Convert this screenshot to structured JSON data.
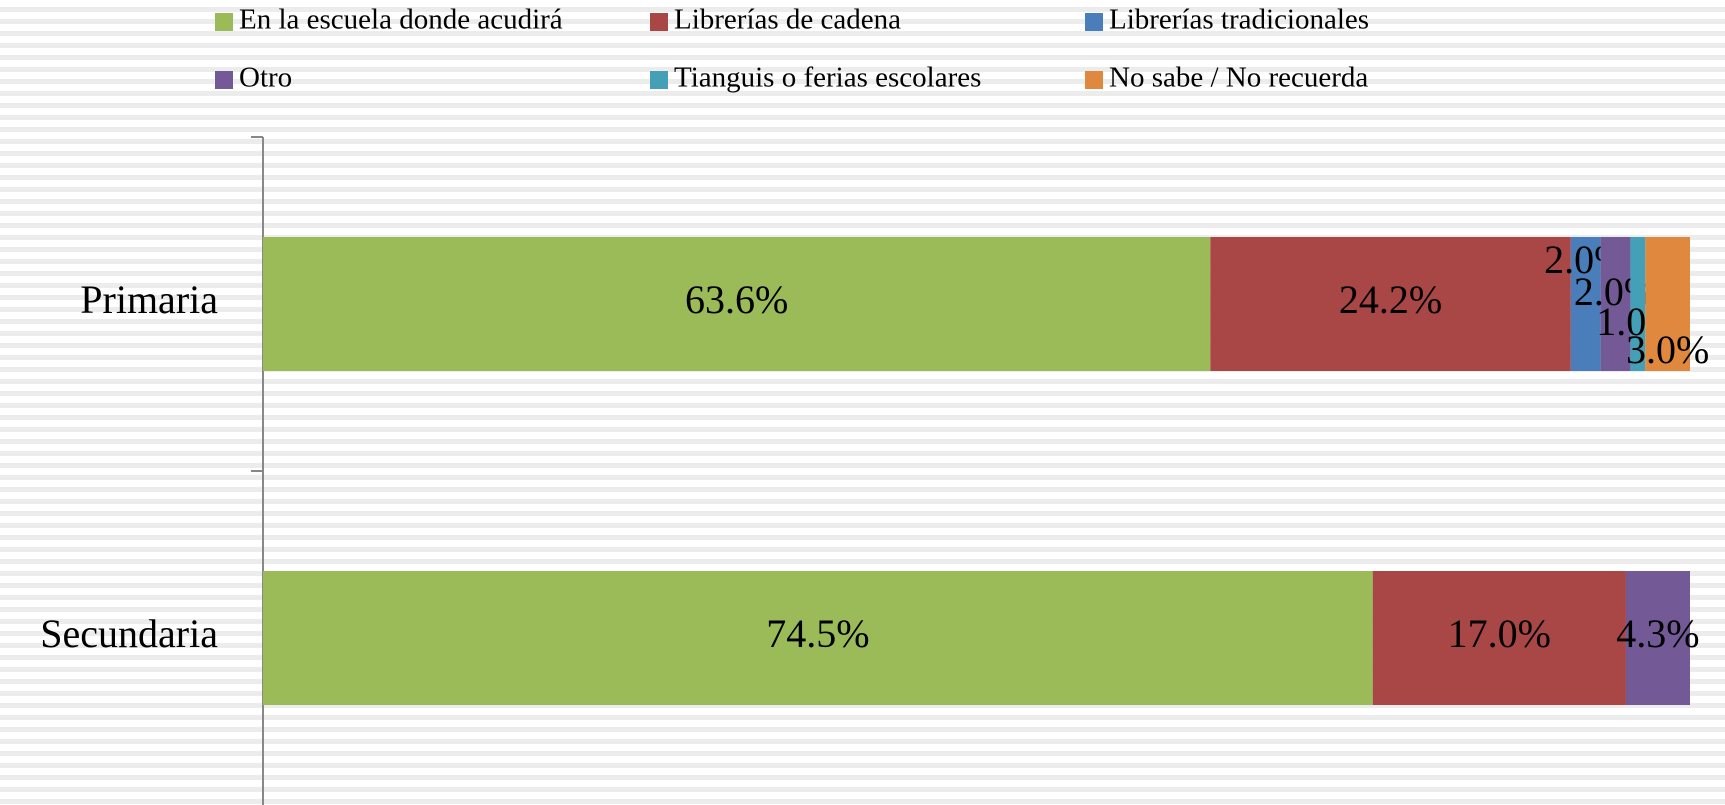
{
  "chart_data": {
    "type": "stacked_bar_100_horizontal",
    "categories": [
      "Primaria",
      "Secundaria"
    ],
    "series": [
      {
        "name": "En la escuela donde acudirá",
        "color": "#9bbb59",
        "values": [
          63.6,
          74.5
        ],
        "value_labels": [
          "63.6%",
          "74.5%"
        ]
      },
      {
        "name": "Librerías de cadena",
        "color": "#a94747",
        "values": [
          24.2,
          17.0
        ],
        "value_labels": [
          "24.2%",
          "17.0%"
        ]
      },
      {
        "name": "Librerías tradicionales",
        "color": "#4a7ebb",
        "values": [
          2.0,
          null
        ],
        "value_labels": [
          "2.0%",
          null
        ]
      },
      {
        "name": "Otro",
        "color": "#735a97",
        "values": [
          2.0,
          4.3
        ],
        "value_labels": [
          "2.0%",
          "4.3%"
        ]
      },
      {
        "name": "Tianguis o ferias escolares",
        "color": "#44a0b6",
        "values": [
          1.0,
          null
        ],
        "value_labels": [
          "1.0%",
          null
        ]
      },
      {
        "name": "No sabe / No recuerda",
        "color": "#e0893e",
        "values": [
          3.0,
          null
        ],
        "value_labels": [
          "3.0%",
          null
        ]
      }
    ],
    "legend": "top"
  }
}
